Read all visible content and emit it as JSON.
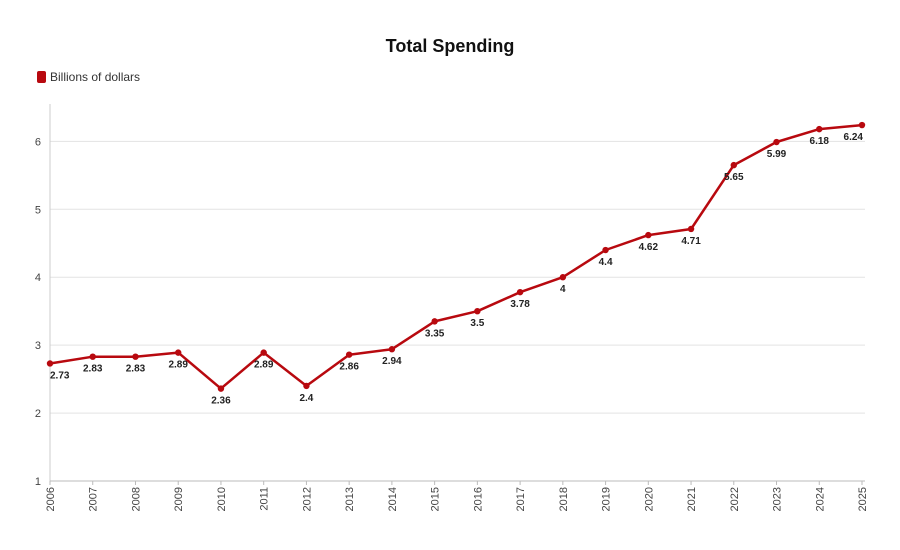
{
  "chart_data": {
    "type": "line",
    "title": "Total Spending",
    "xlabel": "",
    "ylabel": "",
    "x": [
      "2006",
      "2007",
      "2008",
      "2009",
      "2010",
      "2011",
      "2012",
      "2013",
      "2014",
      "2015",
      "2016",
      "2017",
      "2018",
      "2019",
      "2020",
      "2021",
      "2022",
      "2023",
      "2024",
      "2025"
    ],
    "series": [
      {
        "name": "Billions of dollars",
        "color": "#b8090f",
        "values": [
          2.73,
          2.83,
          2.83,
          2.89,
          2.36,
          2.89,
          2.4,
          2.86,
          2.94,
          3.35,
          3.5,
          3.78,
          4,
          4.4,
          4.62,
          4.71,
          5.65,
          5.99,
          6.18,
          6.24
        ],
        "labels": [
          "2.73",
          "2.83",
          "2.83",
          "2.89",
          "2.36",
          "2.89",
          "2.4",
          "2.86",
          "2.94",
          "3.35",
          "3.5",
          "3.78",
          "4",
          "4.4",
          "4.62",
          "4.71",
          "5.65",
          "5.99",
          "6.18",
          "6.24"
        ]
      }
    ],
    "yticks": [
      "1",
      "2",
      "3",
      "4",
      "5",
      "6"
    ],
    "ylim": [
      1,
      6.55
    ],
    "grid": true,
    "legend_position": "top-left"
  }
}
